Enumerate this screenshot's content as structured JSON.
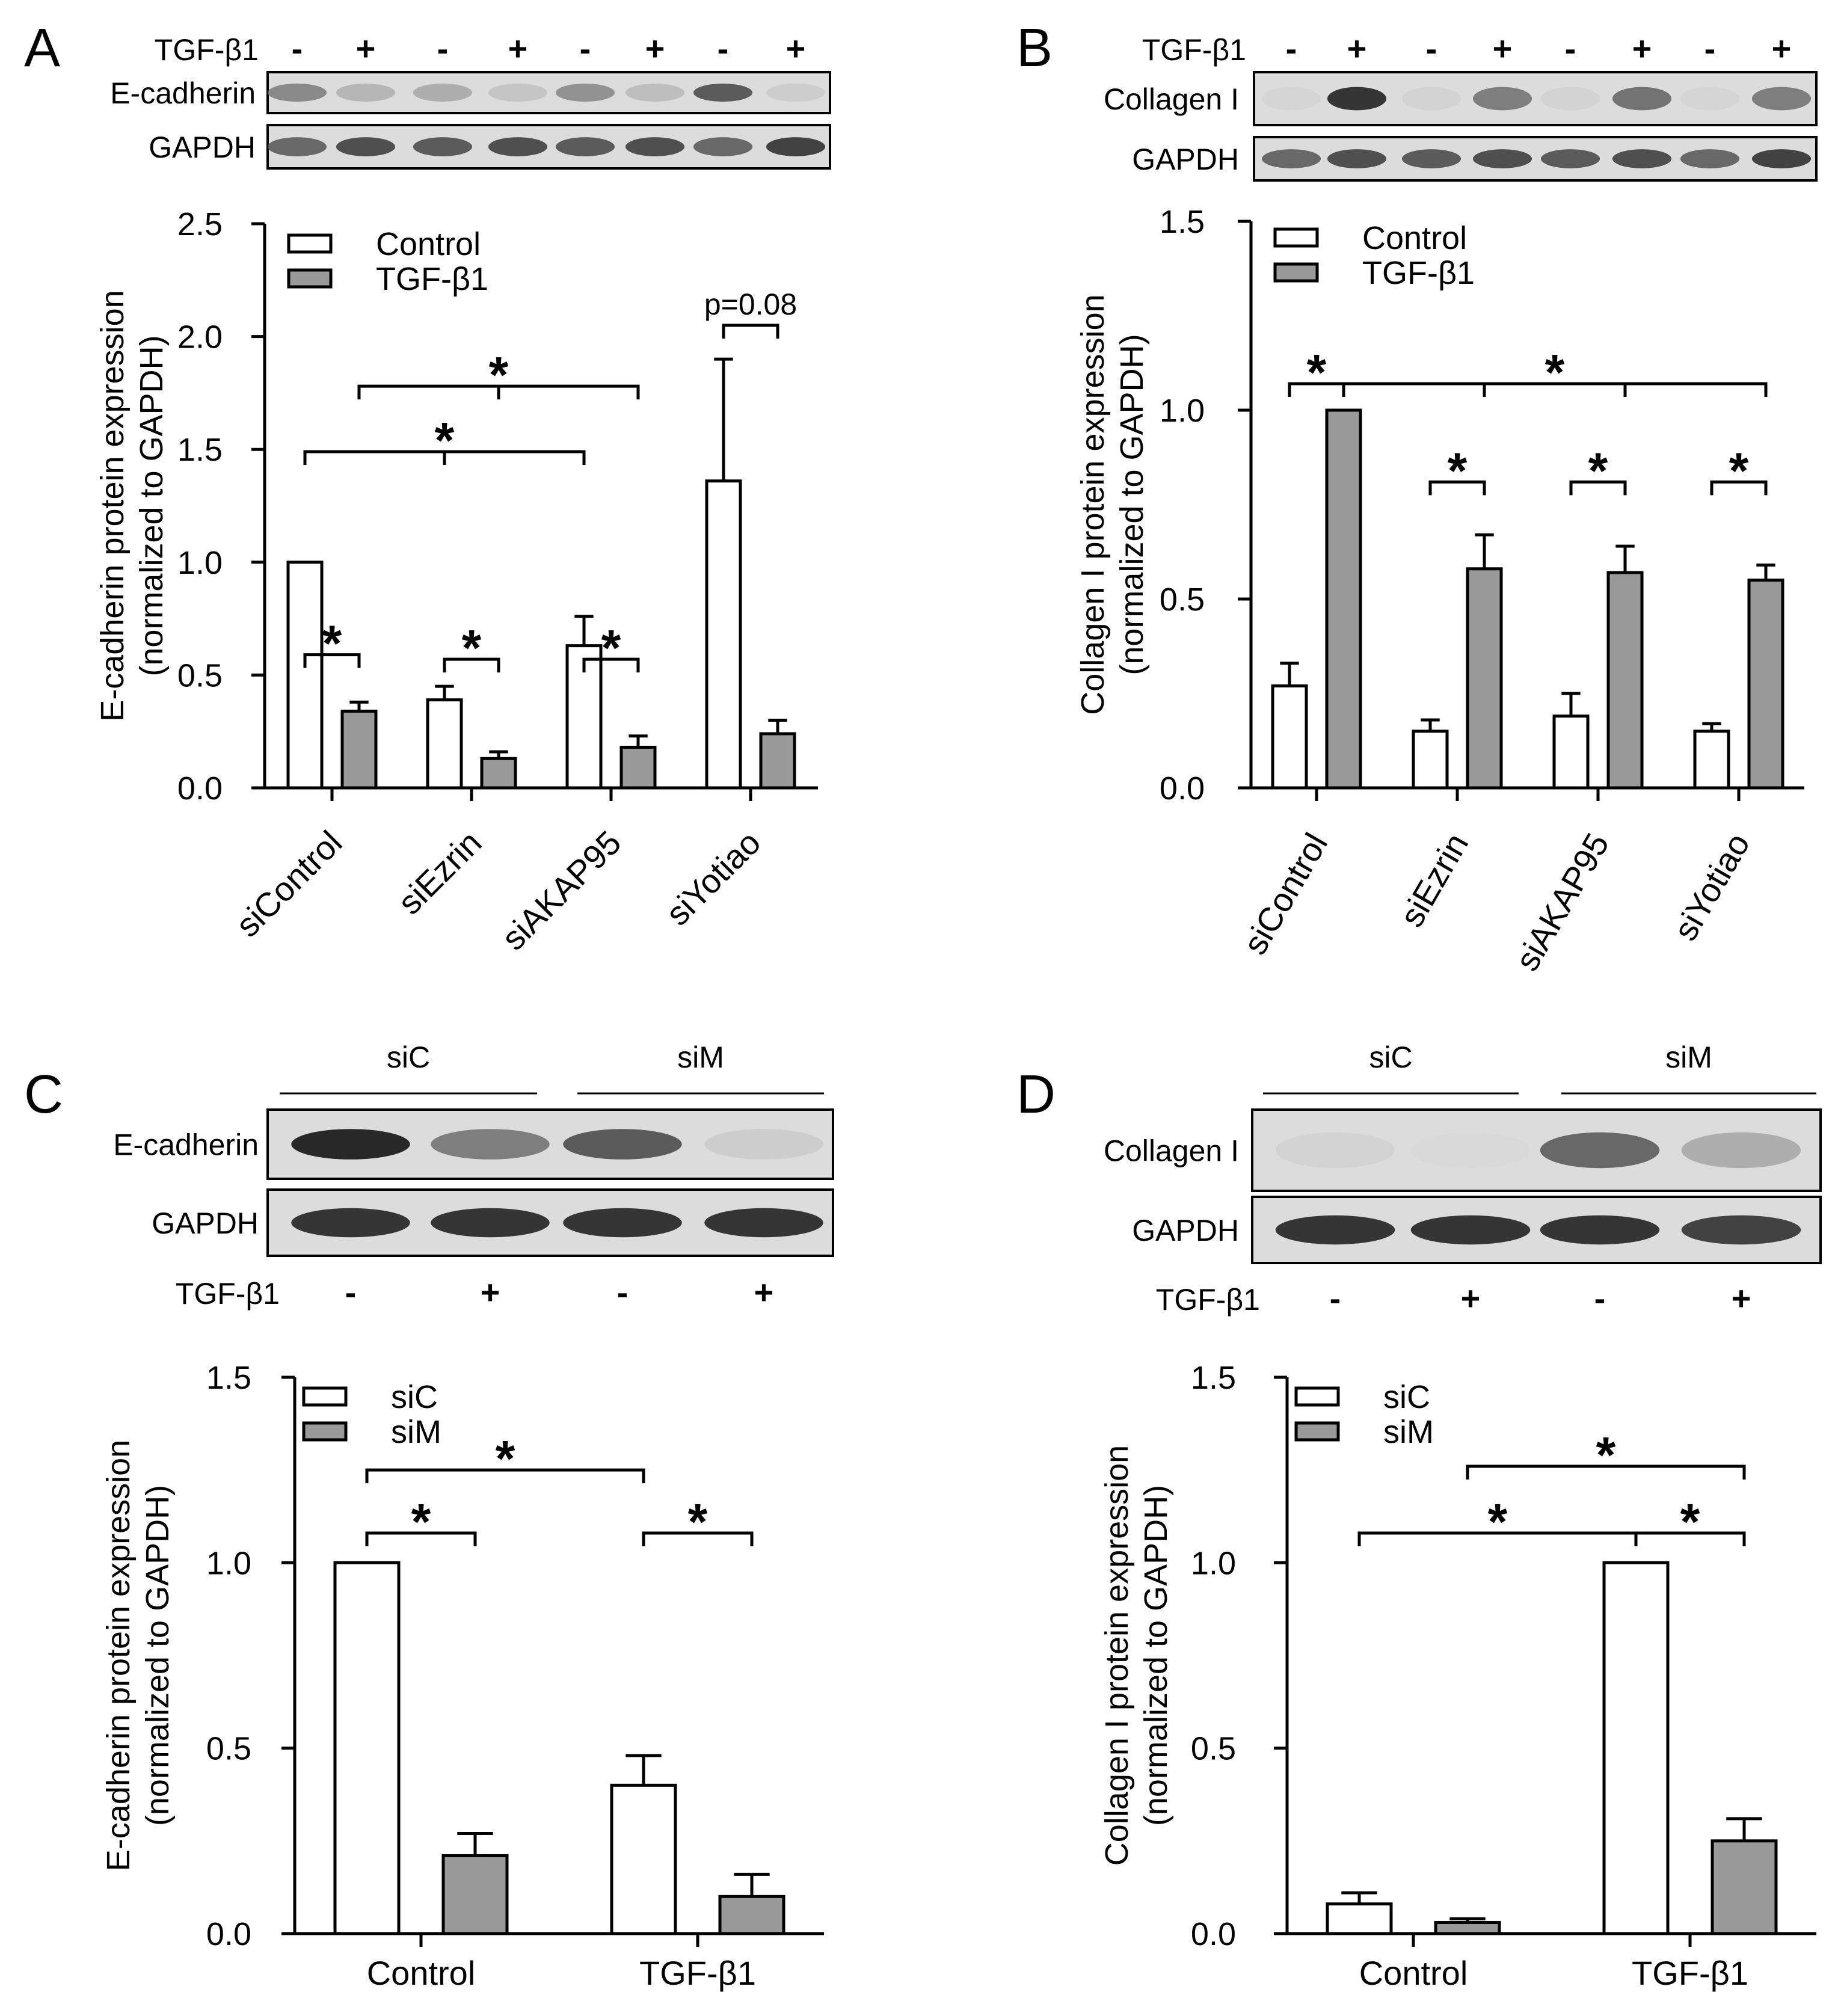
{
  "panels": [
    {
      "letter": "A",
      "blots": [
        {
          "label": "TGF-β1",
          "signs": [
            "-",
            "+",
            "-",
            "+",
            "-",
            "+",
            "-",
            "+"
          ]
        },
        {
          "label": "E-cadherin",
          "intensity": [
            0.55,
            0.3,
            0.35,
            0.2,
            0.5,
            0.25,
            0.75,
            0.15
          ]
        },
        {
          "label": "GAPDH",
          "intensity": [
            0.7,
            0.8,
            0.75,
            0.8,
            0.75,
            0.8,
            0.7,
            0.85
          ]
        }
      ],
      "groups": [],
      "control_label": "",
      "chart_data": {
        "type": "bar",
        "ylabel": "E-cadherin protein expression",
        "ylabel2": "(normalized to GAPDH)",
        "ylim": [
          0,
          2.5
        ],
        "yticks": [
          "0.0",
          "0.5",
          "1.0",
          "1.5",
          "2.0",
          "2.5"
        ],
        "categories": [
          "siControl",
          "siEzrin",
          "siAKAP95",
          "siYotiao"
        ],
        "series": [
          {
            "name": "Control",
            "color": "#ffffff",
            "values": [
              1.0,
              0.39,
              0.63,
              1.36
            ],
            "errors": [
              0,
              0.06,
              0.13,
              0.54
            ]
          },
          {
            "name": "TGF-β1",
            "color": "#999999",
            "values": [
              0.34,
              0.13,
              0.18,
              0.24
            ],
            "errors": [
              0.04,
              0.03,
              0.05,
              0.06
            ]
          }
        ],
        "annotations": [
          {
            "text": "*",
            "a": [
              0,
              0
            ],
            "b": [
              0,
              1
            ],
            "y": 0.59
          },
          {
            "text": "*",
            "a": [
              1,
              0
            ],
            "b": [
              1,
              1
            ],
            "y": 0.57
          },
          {
            "text": "*",
            "a": [
              2,
              0
            ],
            "b": [
              2,
              1
            ],
            "y": 0.57
          },
          {
            "text": "p=0.08",
            "a": [
              3,
              0
            ],
            "b": [
              3,
              1
            ],
            "y": 2.05
          },
          {
            "text": "*",
            "a": [
              0,
              0
            ],
            "b": [
              2,
              0
            ],
            "y": 1.49,
            "ticks": [
              [
                1,
                0
              ]
            ]
          },
          {
            "text": "*",
            "a": [
              0,
              1
            ],
            "b": [
              2,
              1
            ],
            "y": 1.78,
            "ticks": [
              [
                1,
                1
              ]
            ]
          }
        ]
      }
    },
    {
      "letter": "B",
      "blots": [
        {
          "label": "TGF-β1",
          "signs": [
            "-",
            "+",
            "-",
            "+",
            "-",
            "+",
            "-",
            "+"
          ]
        },
        {
          "label": "Collagen I",
          "intensity": [
            0.08,
            0.9,
            0.1,
            0.6,
            0.1,
            0.65,
            0.08,
            0.6
          ]
        },
        {
          "label": "GAPDH",
          "intensity": [
            0.7,
            0.8,
            0.75,
            0.8,
            0.75,
            0.8,
            0.7,
            0.85
          ]
        }
      ],
      "groups": [],
      "control_label": "",
      "chart_data": {
        "type": "bar",
        "ylabel": "Collagen I protein expression",
        "ylabel2": "(normalized to GAPDH)",
        "ylim": [
          0,
          1.5
        ],
        "yticks": [
          "0.0",
          "0.5",
          "1.0",
          "1.5"
        ],
        "categories": [
          "siControl",
          "siEzrin",
          "siAKAP95",
          "siYotiao"
        ],
        "series": [
          {
            "name": "Control",
            "color": "#ffffff",
            "values": [
              0.27,
              0.15,
              0.19,
              0.15
            ],
            "errors": [
              0.06,
              0.03,
              0.06,
              0.02
            ]
          },
          {
            "name": "TGF-β1",
            "color": "#999999",
            "values": [
              1.0,
              0.58,
              0.57,
              0.55
            ],
            "errors": [
              0,
              0.09,
              0.07,
              0.04
            ]
          }
        ],
        "annotations": [
          {
            "text": "*",
            "a": [
              0,
              0
            ],
            "b": [
              0,
              1
            ],
            "y": 1.07
          },
          {
            "text": "*",
            "a": [
              1,
              0
            ],
            "b": [
              1,
              1
            ],
            "y": 0.81
          },
          {
            "text": "*",
            "a": [
              2,
              0
            ],
            "b": [
              2,
              1
            ],
            "y": 0.81
          },
          {
            "text": "*",
            "a": [
              3,
              0
            ],
            "b": [
              3,
              1
            ],
            "y": 0.81
          },
          {
            "text": "*",
            "a": [
              0,
              1
            ],
            "b": [
              3,
              1
            ],
            "y": 1.07,
            "ticks": [
              [
                1,
                1
              ],
              [
                2,
                1
              ]
            ]
          }
        ]
      }
    },
    {
      "letter": "C",
      "blots": [
        {
          "label": "E-cadherin",
          "intensity": [
            0.95,
            0.6,
            0.75,
            0.15
          ]
        },
        {
          "label": "GAPDH",
          "intensity": [
            0.9,
            0.9,
            0.9,
            0.9
          ]
        }
      ],
      "groups": [
        "siC",
        "siM"
      ],
      "control_label": "TGF-β1",
      "control_signs": [
        "-",
        "+",
        "-",
        "+"
      ],
      "chart_data": {
        "type": "bar",
        "ylabel": "E-cadherin protein expression",
        "ylabel2": "(normalized to GAPDH)",
        "ylim": [
          0,
          1.5
        ],
        "yticks": [
          "0.0",
          "0.5",
          "1.0",
          "1.5"
        ],
        "categories": [
          "Control",
          "TGF-β1"
        ],
        "series": [
          {
            "name": "siC",
            "color": "#ffffff",
            "values": [
              1.0,
              0.4
            ],
            "errors": [
              0,
              0.08
            ]
          },
          {
            "name": "siM",
            "color": "#999999",
            "values": [
              0.21,
              0.1
            ],
            "errors": [
              0.06,
              0.06
            ]
          }
        ],
        "annotations": [
          {
            "text": "*",
            "a": [
              0,
              0
            ],
            "b": [
              0,
              1
            ],
            "y": 1.08
          },
          {
            "text": "*",
            "a": [
              1,
              0
            ],
            "b": [
              1,
              1
            ],
            "y": 1.08
          },
          {
            "text": "*",
            "a": [
              0,
              0
            ],
            "b": [
              1,
              0
            ],
            "y": 1.25
          }
        ]
      }
    },
    {
      "letter": "D",
      "blots": [
        {
          "label": "Collagen I",
          "intensity": [
            0.1,
            0.05,
            0.7,
            0.35
          ]
        },
        {
          "label": "GAPDH",
          "intensity": [
            0.9,
            0.9,
            0.9,
            0.85
          ]
        }
      ],
      "groups": [
        "siC",
        "siM"
      ],
      "control_label": "TGF-β1",
      "control_signs": [
        "-",
        "+",
        "-",
        "+"
      ],
      "chart_data": {
        "type": "bar",
        "ylabel": "Collagen I protein expression",
        "ylabel2": "(normalized to GAPDH)",
        "ylim": [
          0,
          1.5
        ],
        "yticks": [
          "0.0",
          "0.5",
          "1.0",
          "1.5"
        ],
        "categories": [
          "Control",
          "TGF-β1"
        ],
        "series": [
          {
            "name": "siC",
            "color": "#ffffff",
            "values": [
              0.08,
              1.0
            ],
            "errors": [
              0.03,
              0
            ]
          },
          {
            "name": "siM",
            "color": "#999999",
            "values": [
              0.03,
              0.25
            ],
            "errors": [
              0.01,
              0.06
            ]
          }
        ],
        "annotations": [
          {
            "text": "*",
            "a": [
              0,
              0
            ],
            "b": [
              1,
              0
            ],
            "y": 1.08
          },
          {
            "text": "*",
            "a": [
              1,
              0
            ],
            "b": [
              1,
              1
            ],
            "y": 1.08
          },
          {
            "text": "*",
            "a": [
              0,
              1
            ],
            "b": [
              1,
              1
            ],
            "y": 1.26
          }
        ]
      }
    }
  ]
}
